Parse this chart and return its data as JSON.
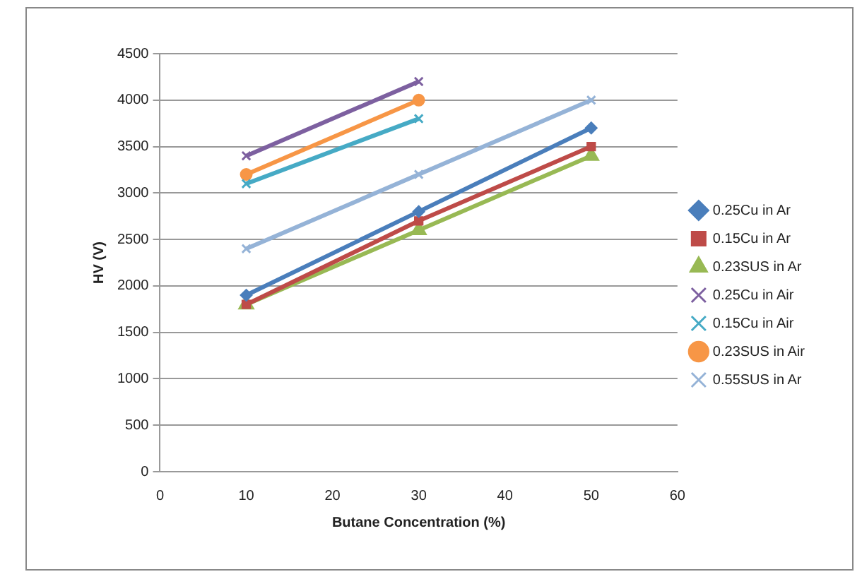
{
  "chart_data": {
    "type": "line",
    "xlabel": "Butane Concentration (%)",
    "ylabel": "HV (V)",
    "xlim": [
      0,
      60
    ],
    "xticks": [
      0,
      10,
      20,
      30,
      40,
      50,
      60
    ],
    "ylim": [
      0,
      4500
    ],
    "yticks": [
      0,
      500,
      1000,
      1500,
      2000,
      2500,
      3000,
      3500,
      4000,
      4500
    ],
    "grid": "y",
    "legend": "right",
    "line_style": "solid",
    "series": [
      {
        "name": "0.25Cu in Ar",
        "color": "#4a7ebb",
        "marker": "diamond",
        "x": [
          10,
          30,
          50
        ],
        "values": [
          1900,
          2800,
          3700
        ]
      },
      {
        "name": "0.15Cu in Ar",
        "color": "#be4b48",
        "marker": "square",
        "x": [
          10,
          30,
          50
        ],
        "values": [
          1800,
          2700,
          3500
        ]
      },
      {
        "name": "0.23SUS in Ar",
        "color": "#98b954",
        "marker": "triangle",
        "x": [
          10,
          30,
          50
        ],
        "values": [
          1800,
          2600,
          3400
        ]
      },
      {
        "name": "0.25Cu in Air",
        "color": "#7d60a0",
        "marker": "cross",
        "x": [
          10,
          30
        ],
        "values": [
          3400,
          4200
        ]
      },
      {
        "name": "0.15Cu in Air",
        "color": "#46aac5",
        "marker": "cross",
        "x": [
          10,
          30
        ],
        "values": [
          3100,
          3800
        ]
      },
      {
        "name": "0.23SUS in Air",
        "color": "#f79646",
        "marker": "circle",
        "x": [
          10,
          30
        ],
        "values": [
          3200,
          4000
        ]
      },
      {
        "name": "0.55SUS in Ar",
        "color": "#95b3d7",
        "marker": "cross",
        "x": [
          10,
          30,
          50
        ],
        "values": [
          2400,
          3200,
          4000
        ]
      }
    ]
  }
}
